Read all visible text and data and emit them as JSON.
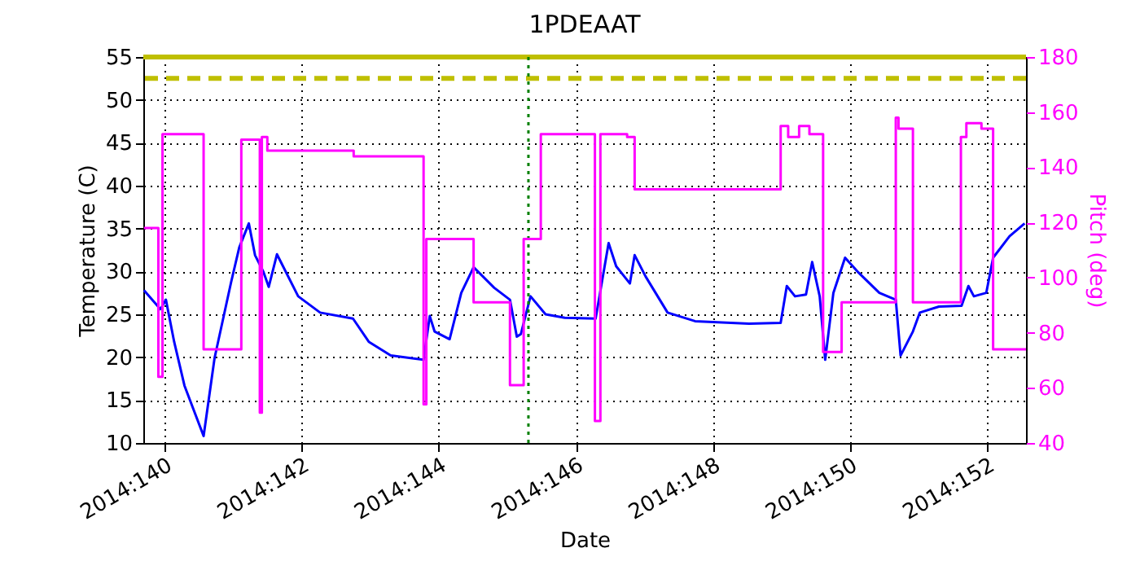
{
  "chart_data": {
    "type": "line",
    "title": "1PDEAAT",
    "xlabel": "Date",
    "ylabel": "Temperature (C)",
    "y2label": "Pitch (deg)",
    "xlim": [
      "2014-05-19T16:34",
      "2014-06-01T13:41"
    ],
    "xticks": [
      {
        "value": "2014-05-20",
        "label": "2014:140"
      },
      {
        "value": "2014-05-22",
        "label": "2014:142"
      },
      {
        "value": "2014-05-24",
        "label": "2014:144"
      },
      {
        "value": "2014-05-26",
        "label": "2014:146"
      },
      {
        "value": "2014-05-28",
        "label": "2014:148"
      },
      {
        "value": "2014-05-30",
        "label": "2014:150"
      },
      {
        "value": "2014-06-01",
        "label": "2014:152"
      }
    ],
    "ylim": [
      10,
      55
    ],
    "yticks": [
      10,
      15,
      20,
      25,
      30,
      35,
      40,
      45,
      50,
      55
    ],
    "y2lim": [
      40,
      180
    ],
    "y2ticks": [
      40,
      60,
      80,
      100,
      120,
      140,
      160,
      180
    ],
    "grid": true,
    "series": [
      {
        "color": "#0000ff",
        "x": [
          "2014-05-19T16:48",
          "2014-05-19T22:34",
          "2014-05-20T00:29",
          "2014-05-20T03:22",
          "2014-05-20T06:58",
          "2014-05-20T13:41",
          "2014-05-20T17:31",
          "2014-05-20T23:17",
          "2014-05-21T02:10",
          "2014-05-21T05:31",
          "2014-05-21T07:41",
          "2014-05-21T10:34",
          "2014-05-21T12:29",
          "2014-05-21T15:22",
          "2014-05-21T22:48",
          "2014-05-22T06:29",
          "2014-05-22T18:00",
          "2014-05-22T23:31",
          "2014-05-23T07:12",
          "2014-05-23T18:43",
          "2014-05-23T20:53",
          "2014-05-23T22:34",
          "2014-05-24T03:50",
          "2014-05-24T07:55",
          "2014-05-24T12:14",
          "2014-05-24T19:26",
          "2014-05-25T00:58",
          "2014-05-25T03:22",
          "2014-05-25T04:48",
          "2014-05-25T08:10",
          "2014-05-25T13:26",
          "2014-05-25T20:10",
          "2014-05-26T06:58",
          "2014-05-26T11:31",
          "2014-05-26T14:10",
          "2014-05-26T18:58",
          "2014-05-26T20:38",
          "2014-05-27T00:29",
          "2014-05-27T08:10",
          "2014-05-27T17:46",
          "2014-05-28T12:43",
          "2014-05-28T23:46",
          "2014-05-29T01:55",
          "2014-05-29T04:48",
          "2014-05-29T08:38",
          "2014-05-29T10:48",
          "2014-05-29T13:26",
          "2014-05-29T15:22",
          "2014-05-29T18:14",
          "2014-05-29T22:19",
          "2014-05-30T02:38",
          "2014-05-30T10:19",
          "2014-05-30T16:05",
          "2014-05-30T17:46",
          "2014-05-30T22:05",
          "2014-05-31T00:29",
          "2014-05-31T07:12",
          "2014-05-31T15:07",
          "2014-05-31T17:31",
          "2014-05-31T19:26",
          "2014-05-31T23:46",
          "2014-06-01T02:10",
          "2014-06-01T07:55",
          "2014-06-01T13:12"
        ],
        "values": [
          27.8,
          25.6,
          26.7,
          21.8,
          16.7,
          10.8,
          19.9,
          28.7,
          32.8,
          35.6,
          31.9,
          30.0,
          28.2,
          32.0,
          27.1,
          25.2,
          24.5,
          21.8,
          20.2,
          19.7,
          24.8,
          23.0,
          22.1,
          27.5,
          30.5,
          28.1,
          26.7,
          22.4,
          22.7,
          27.1,
          25.0,
          24.6,
          24.5,
          33.3,
          30.6,
          28.6,
          31.9,
          29.4,
          25.2,
          24.2,
          23.9,
          24.0,
          28.3,
          27.1,
          27.3,
          31.1,
          27.1,
          19.7,
          27.5,
          31.6,
          30.0,
          27.5,
          26.7,
          20.2,
          23.0,
          25.2,
          25.9,
          26.0,
          28.3,
          27.1,
          27.5,
          31.6,
          34.1,
          35.6
        ]
      },
      {
        "type": "step",
        "axis": "y2",
        "color": "#ff00ff",
        "x": [
          "2014-05-19T16:48",
          "2014-05-19T21:50",
          "2014-05-19T23:17",
          "2014-05-20T13:41",
          "2014-05-21T02:53",
          "2014-05-21T09:22",
          "2014-05-21T10:05",
          "2014-05-21T12:00",
          "2014-05-22T18:14",
          "2014-05-23T18:43",
          "2014-05-23T19:41",
          "2014-05-24T12:14",
          "2014-05-25T00:58",
          "2014-05-25T05:46",
          "2014-05-25T11:46",
          "2014-05-26T06:43",
          "2014-05-26T08:38",
          "2014-05-26T18:00",
          "2014-05-26T20:38",
          "2014-05-28T23:46",
          "2014-05-29T02:24",
          "2014-05-29T06:14",
          "2014-05-29T09:50",
          "2014-05-29T14:38",
          "2014-05-29T21:07",
          "2014-05-30T16:05",
          "2014-05-30T17:02",
          "2014-05-30T22:05",
          "2014-05-31T14:53",
          "2014-05-31T16:48",
          "2014-05-31T22:05",
          "2014-06-01T02:10",
          "2014-06-01T13:41"
        ],
        "values": [
          118,
          64,
          152,
          74,
          150,
          51,
          151,
          146,
          144,
          54,
          114,
          91,
          61,
          114,
          152,
          48,
          152,
          151,
          132,
          155,
          151,
          155,
          152,
          73,
          91,
          158,
          154,
          91,
          151,
          156,
          154,
          74,
          74
        ]
      }
    ],
    "ref_lines": [
      {
        "axis": "y",
        "value": 55,
        "color": "#bfbf00",
        "line_style": "solid"
      },
      {
        "axis": "y",
        "value": 52.5,
        "color": "#bfbf00",
        "line_style": "dashed"
      },
      {
        "axis": "x",
        "value": "2014-05-25T07:26",
        "color": "#008000",
        "line_style": "dotted"
      }
    ]
  }
}
